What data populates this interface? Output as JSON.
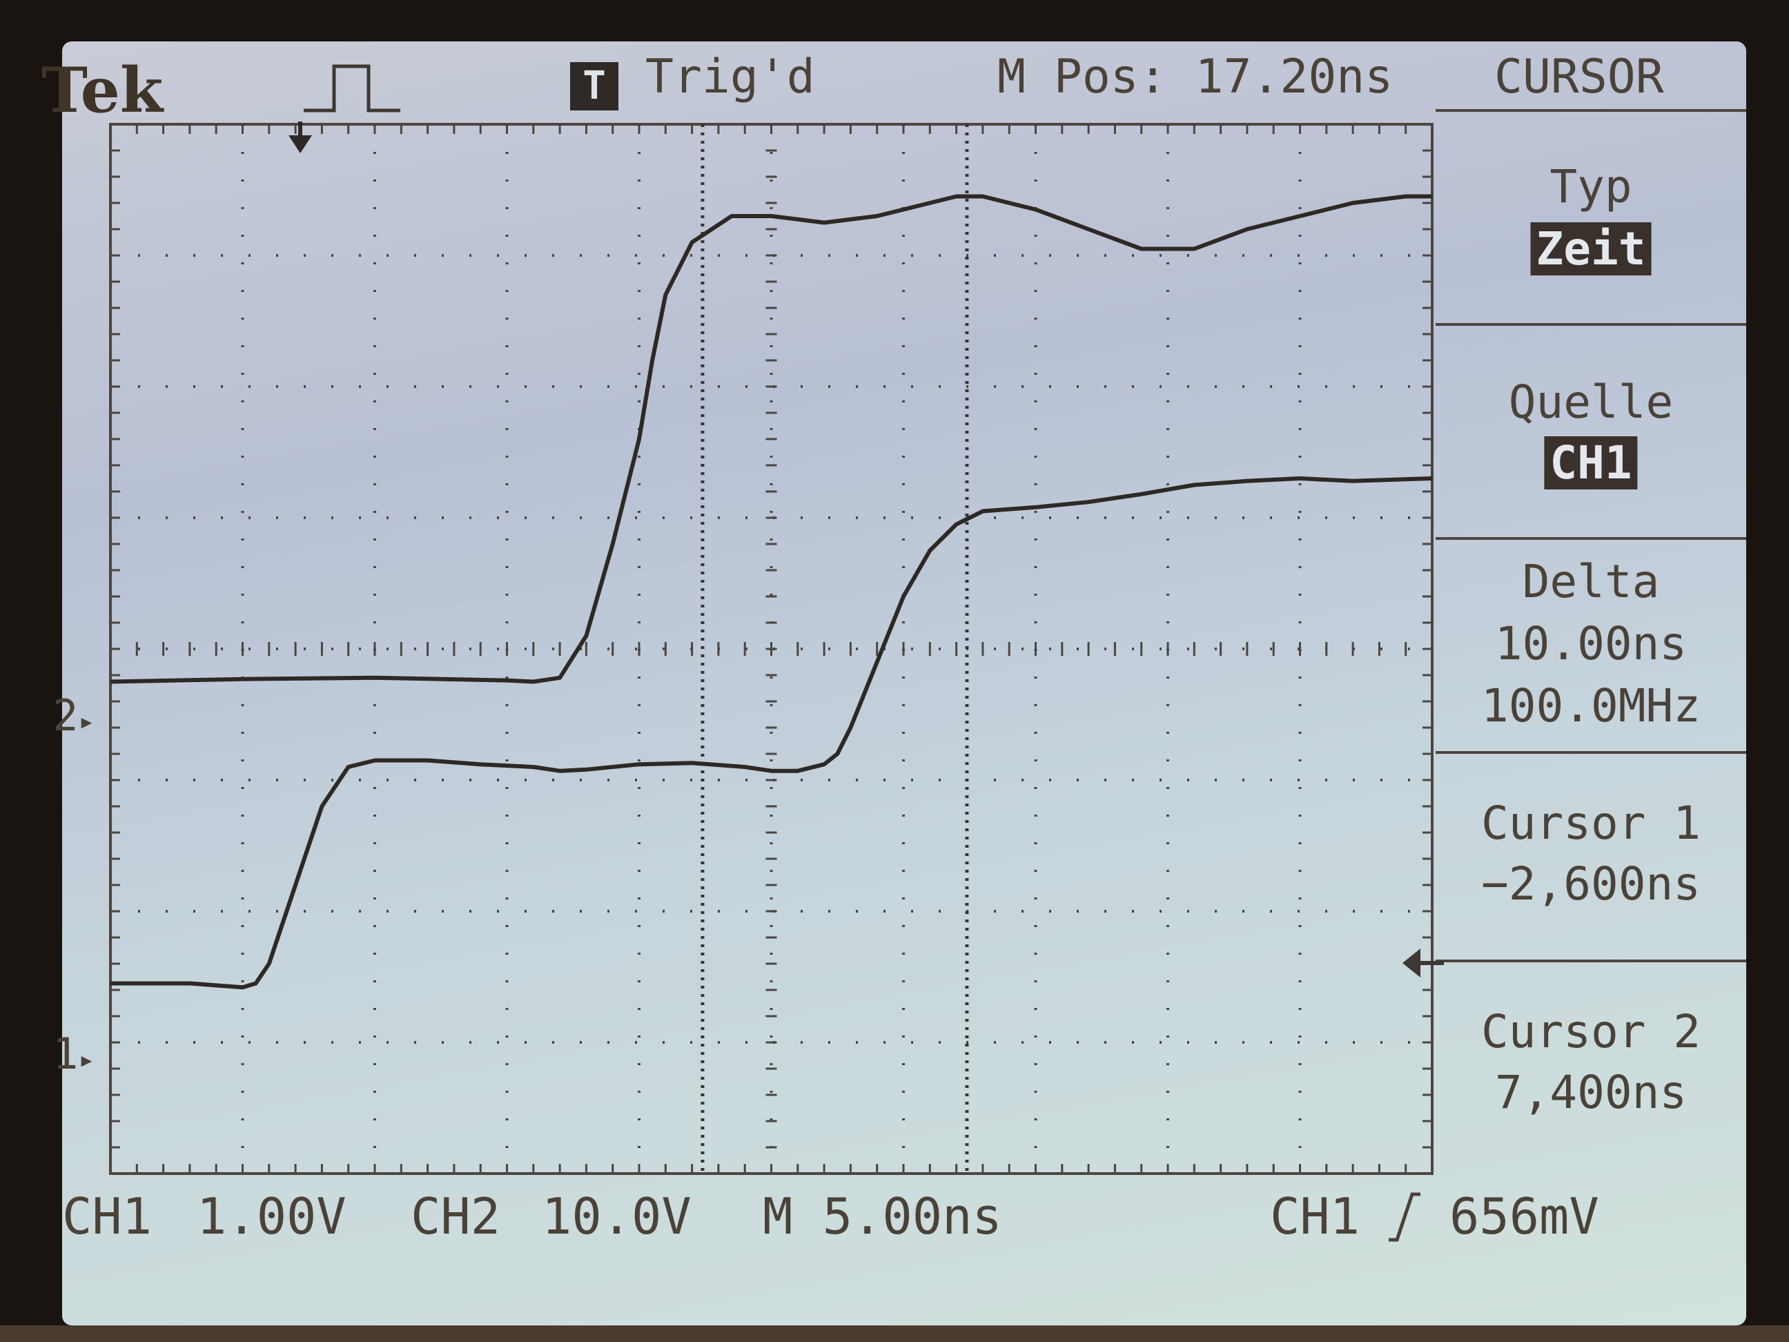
{
  "header": {
    "brand": "Tek",
    "trigger_badge": "T",
    "trigger_state": "Trig'd",
    "main_position": "M Pos: 17.20ns",
    "menu_name": "CURSOR"
  },
  "menu": [
    {
      "title": "Typ",
      "value": "Zeit",
      "highlighted": true
    },
    {
      "title": "Quelle",
      "value": "CH1",
      "highlighted": true
    },
    {
      "title": "Delta",
      "lines": [
        "10.00ns",
        "100.0MHz"
      ]
    },
    {
      "title": "Cursor 1",
      "lines": [
        "−2,600ns"
      ]
    },
    {
      "title": "Cursor 2",
      "lines": [
        "7,400ns"
      ]
    }
  ],
  "footer": {
    "ch1_label": "CH1",
    "ch1_scale": "1.00V",
    "ch2_label": "CH2",
    "ch2_scale": "10.0V",
    "timebase": "M 5.00ns",
    "trigger_source": "CH1",
    "trigger_slope_icon": "rising-edge-icon",
    "trigger_level": "656mV"
  },
  "markers": {
    "ch1": "1",
    "ch2": "2"
  },
  "chart_data": {
    "type": "line",
    "title": "",
    "xlabel": "",
    "ylabel": "",
    "x_units": "ns",
    "y_units": "div",
    "xlim": [
      -25,
      25
    ],
    "ylim": [
      -4,
      4
    ],
    "grid": true,
    "cursors_ns": [
      -2.6,
      7.4
    ],
    "series": [
      {
        "name": "CH2",
        "x": [
          -25,
          -20,
          -15,
          -10,
          -9,
          -8,
          -7,
          -6,
          -5,
          -4.5,
          -4,
          -3,
          -1.5,
          0,
          2,
          4,
          6,
          7,
          8,
          9,
          10,
          12,
          14,
          16,
          18,
          20,
          22,
          24,
          25
        ],
        "values": [
          -0.25,
          -0.23,
          -0.22,
          -0.24,
          -0.25,
          -0.22,
          0.1,
          0.8,
          1.6,
          2.2,
          2.7,
          3.1,
          3.3,
          3.3,
          3.25,
          3.3,
          3.4,
          3.45,
          3.45,
          3.4,
          3.35,
          3.2,
          3.05,
          3.05,
          3.2,
          3.3,
          3.4,
          3.45,
          3.45
        ]
      },
      {
        "name": "CH1",
        "x": [
          -25,
          -22,
          -20,
          -19.5,
          -19,
          -18,
          -17,
          -16,
          -15,
          -13,
          -11,
          -9,
          -8,
          -7,
          -5,
          -3,
          -1,
          0,
          1,
          2,
          2.5,
          3,
          4,
          5,
          6,
          7,
          8,
          10,
          12,
          14,
          16,
          18,
          20,
          22,
          25
        ],
        "values": [
          -2.55,
          -2.55,
          -2.58,
          -2.55,
          -2.4,
          -1.8,
          -1.2,
          -0.9,
          -0.85,
          -0.85,
          -0.88,
          -0.9,
          -0.93,
          -0.92,
          -0.88,
          -0.87,
          -0.9,
          -0.93,
          -0.93,
          -0.88,
          -0.8,
          -0.6,
          -0.1,
          0.4,
          0.75,
          0.95,
          1.05,
          1.08,
          1.12,
          1.18,
          1.25,
          1.28,
          1.3,
          1.28,
          1.3
        ]
      }
    ]
  }
}
